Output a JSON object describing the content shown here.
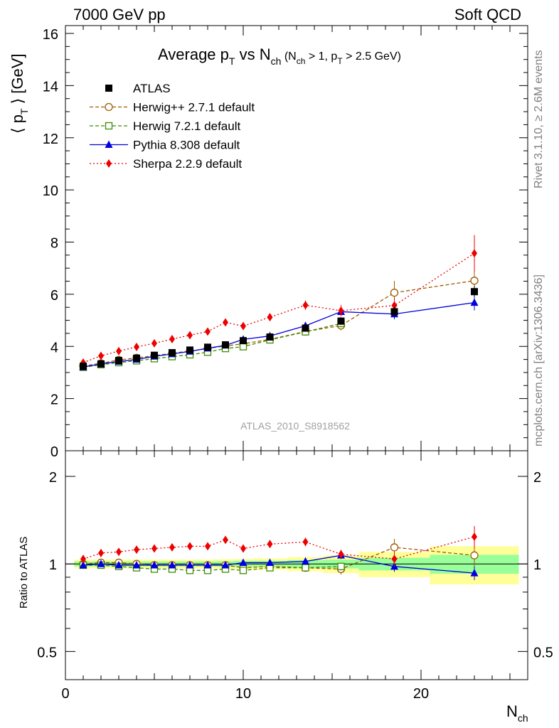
{
  "header": {
    "energy_label": "7000 GeV pp",
    "process_label": "Soft QCD",
    "rivet_label": "Rivet 3.1.10, ≥ 2.6M events",
    "mcplots_label": "mcplots.cern.ch [arXiv:1306.3436]",
    "analysis_id": "ATLAS_2010_S8918562"
  },
  "chart_data": [
    {
      "type": "scatter",
      "panel": "main",
      "title": "Average pT vs Nch (Nch > 1, pT > 2.5 GeV)",
      "ylabel": "⟨ pT ⟩ [GeV]",
      "xlim": [
        0,
        26
      ],
      "ylim": [
        0,
        16.3
      ],
      "y_ticks": [
        "0",
        "2",
        "4",
        "6",
        "8",
        "10",
        "12",
        "14",
        "16"
      ],
      "grid": false,
      "legend_position": "top-left",
      "series": [
        {
          "name": "ATLAS",
          "color": "#000000",
          "marker": "square-filled",
          "line": "none",
          "points": [
            [
              1,
              3.24
            ],
            [
              2,
              3.33
            ],
            [
              3,
              3.46
            ],
            [
              4,
              3.55
            ],
            [
              5,
              3.66
            ],
            [
              6,
              3.76
            ],
            [
              7,
              3.86
            ],
            [
              8,
              3.97
            ],
            [
              9,
              4.06
            ],
            [
              10,
              4.22
            ],
            [
              11.5,
              4.36
            ],
            [
              13.5,
              4.7
            ],
            [
              15.5,
              4.97
            ],
            [
              18.5,
              5.33
            ],
            [
              23,
              6.1
            ]
          ],
          "errors": [
            0.06,
            0.06,
            0.06,
            0.07,
            0.07,
            0.07,
            0.08,
            0.08,
            0.09,
            0.1,
            0.1,
            0.12,
            0.15,
            0.18,
            0.22
          ]
        },
        {
          "name": "Herwig++ 2.7.1 default",
          "color": "#a05a00",
          "marker": "circle-open",
          "line": "dashed",
          "points": [
            [
              1,
              3.25
            ],
            [
              2,
              3.35
            ],
            [
              3,
              3.48
            ],
            [
              4,
              3.56
            ],
            [
              5,
              3.64
            ],
            [
              6,
              3.74
            ],
            [
              7,
              3.82
            ],
            [
              8,
              3.92
            ],
            [
              9,
              4.02
            ],
            [
              10,
              4.1
            ],
            [
              11.5,
              4.27
            ],
            [
              13.5,
              4.57
            ],
            [
              15.5,
              4.8
            ],
            [
              18.5,
              6.06
            ],
            [
              23,
              6.52
            ]
          ],
          "errors": [
            0.03,
            0.03,
            0.03,
            0.03,
            0.04,
            0.04,
            0.05,
            0.05,
            0.06,
            0.07,
            0.08,
            0.12,
            0.18,
            0.45,
            0.7
          ]
        },
        {
          "name": "Herwig 7.2.1 default",
          "color": "#3c8c00",
          "marker": "square-open",
          "line": "dashed",
          "points": [
            [
              1,
              3.2
            ],
            [
              2,
              3.3
            ],
            [
              3,
              3.38
            ],
            [
              4,
              3.45
            ],
            [
              5,
              3.53
            ],
            [
              6,
              3.61
            ],
            [
              7,
              3.68
            ],
            [
              8,
              3.78
            ],
            [
              9,
              3.92
            ],
            [
              10,
              3.99
            ],
            [
              11.5,
              4.25
            ],
            [
              13.5,
              4.56
            ],
            [
              15.5,
              4.88
            ]
          ],
          "errors": [
            0.03,
            0.03,
            0.03,
            0.03,
            0.03,
            0.04,
            0.04,
            0.05,
            0.05,
            0.06,
            0.07,
            0.1,
            0.15
          ]
        },
        {
          "name": "Pythia 8.308 default",
          "color": "#0000dd",
          "marker": "triangle-filled",
          "line": "solid",
          "points": [
            [
              1,
              3.21
            ],
            [
              2,
              3.33
            ],
            [
              3,
              3.42
            ],
            [
              4,
              3.5
            ],
            [
              5,
              3.62
            ],
            [
              6,
              3.71
            ],
            [
              7,
              3.81
            ],
            [
              8,
              3.93
            ],
            [
              9,
              4.04
            ],
            [
              10,
              4.27
            ],
            [
              11.5,
              4.4
            ],
            [
              13.5,
              4.79
            ],
            [
              15.5,
              5.33
            ],
            [
              18.5,
              5.24
            ],
            [
              23,
              5.68
            ]
          ],
          "errors": [
            0.03,
            0.03,
            0.03,
            0.03,
            0.03,
            0.04,
            0.04,
            0.05,
            0.05,
            0.06,
            0.07,
            0.1,
            0.15,
            0.2,
            0.3
          ]
        },
        {
          "name": "Sherpa 2.2.9 default",
          "color": "#ee0000",
          "marker": "diamond-filled",
          "line": "dotted",
          "points": [
            [
              1,
              3.38
            ],
            [
              2,
              3.64
            ],
            [
              3,
              3.82
            ],
            [
              4,
              3.98
            ],
            [
              5,
              4.12
            ],
            [
              6,
              4.28
            ],
            [
              7,
              4.43
            ],
            [
              8,
              4.57
            ],
            [
              9,
              4.92
            ],
            [
              10,
              4.78
            ],
            [
              11.5,
              5.12
            ],
            [
              13.5,
              5.58
            ],
            [
              15.5,
              5.37
            ],
            [
              18.5,
              5.57
            ],
            [
              23,
              7.57
            ]
          ],
          "errors": [
            0.03,
            0.04,
            0.04,
            0.05,
            0.05,
            0.06,
            0.07,
            0.08,
            0.1,
            0.1,
            0.12,
            0.18,
            0.22,
            0.3,
            0.7
          ]
        }
      ]
    },
    {
      "type": "scatter",
      "panel": "ratio",
      "ylabel": "Ratio to ATLAS",
      "xlabel": "Nch",
      "xlim": [
        0,
        26
      ],
      "ylim": [
        0.4,
        2.45
      ],
      "y_scale": "log",
      "x_ticks": [
        "0",
        "10",
        "20"
      ],
      "y_ticks": [
        "0.5",
        "1",
        "2"
      ],
      "ratio_points": {
        "Herwig++ 2.7.1 default": [
          1.0,
          1.01,
          1.01,
          1.0,
          0.99,
          0.99,
          0.99,
          0.99,
          0.99,
          0.97,
          0.98,
          0.97,
          0.96,
          1.14,
          1.07
        ],
        "Herwig 7.2.1 default": [
          0.99,
          0.99,
          0.98,
          0.97,
          0.96,
          0.96,
          0.95,
          0.95,
          0.96,
          0.95,
          0.97,
          0.97,
          0.98
        ],
        "Pythia 8.308 default": [
          0.99,
          1.0,
          0.99,
          0.99,
          0.99,
          0.99,
          0.99,
          0.99,
          0.99,
          1.01,
          1.01,
          1.02,
          1.07,
          0.98,
          0.93
        ],
        "Sherpa 2.2.9 default": [
          1.04,
          1.09,
          1.1,
          1.12,
          1.13,
          1.14,
          1.15,
          1.15,
          1.21,
          1.13,
          1.17,
          1.19,
          1.08,
          1.04,
          1.24
        ]
      },
      "ratio_errors": {
        "Herwig++ 2.7.1 default": [
          0.01,
          0.01,
          0.01,
          0.01,
          0.01,
          0.01,
          0.01,
          0.01,
          0.01,
          0.02,
          0.02,
          0.03,
          0.04,
          0.08,
          0.11
        ],
        "Herwig 7.2.1 default": [
          0.01,
          0.01,
          0.01,
          0.01,
          0.01,
          0.01,
          0.01,
          0.01,
          0.01,
          0.02,
          0.02,
          0.02,
          0.03
        ],
        "Pythia 8.308 default": [
          0.01,
          0.01,
          0.01,
          0.01,
          0.01,
          0.01,
          0.01,
          0.01,
          0.01,
          0.02,
          0.02,
          0.02,
          0.03,
          0.04,
          0.05
        ],
        "Sherpa 2.2.9 default": [
          0.01,
          0.01,
          0.01,
          0.01,
          0.01,
          0.02,
          0.02,
          0.02,
          0.02,
          0.02,
          0.03,
          0.04,
          0.04,
          0.06,
          0.11
        ]
      },
      "bands": [
        {
          "x": [
            0.5,
            1.5
          ],
          "stat": 0.02,
          "total": 0.035
        },
        {
          "x": [
            1.5,
            2.5
          ],
          "stat": 0.02,
          "total": 0.035
        },
        {
          "x": [
            2.5,
            3.5
          ],
          "stat": 0.02,
          "total": 0.035
        },
        {
          "x": [
            3.5,
            4.5
          ],
          "stat": 0.02,
          "total": 0.035
        },
        {
          "x": [
            4.5,
            5.5
          ],
          "stat": 0.02,
          "total": 0.035
        },
        {
          "x": [
            5.5,
            6.5
          ],
          "stat": 0.02,
          "total": 0.035
        },
        {
          "x": [
            6.5,
            7.5
          ],
          "stat": 0.02,
          "total": 0.035
        },
        {
          "x": [
            7.5,
            8.5
          ],
          "stat": 0.02,
          "total": 0.035
        },
        {
          "x": [
            8.5,
            9.5
          ],
          "stat": 0.022,
          "total": 0.038
        },
        {
          "x": [
            9.5,
            10.5
          ],
          "stat": 0.025,
          "total": 0.04
        },
        {
          "x": [
            10.5,
            12.5
          ],
          "stat": 0.025,
          "total": 0.045
        },
        {
          "x": [
            12.5,
            14.5
          ],
          "stat": 0.03,
          "total": 0.055
        },
        {
          "x": [
            14.5,
            16.5
          ],
          "stat": 0.035,
          "total": 0.07
        },
        {
          "x": [
            16.5,
            20.5
          ],
          "stat": 0.05,
          "total": 0.1
        },
        {
          "x": [
            20.5,
            25.5
          ],
          "stat": 0.075,
          "total": 0.15
        }
      ]
    }
  ]
}
